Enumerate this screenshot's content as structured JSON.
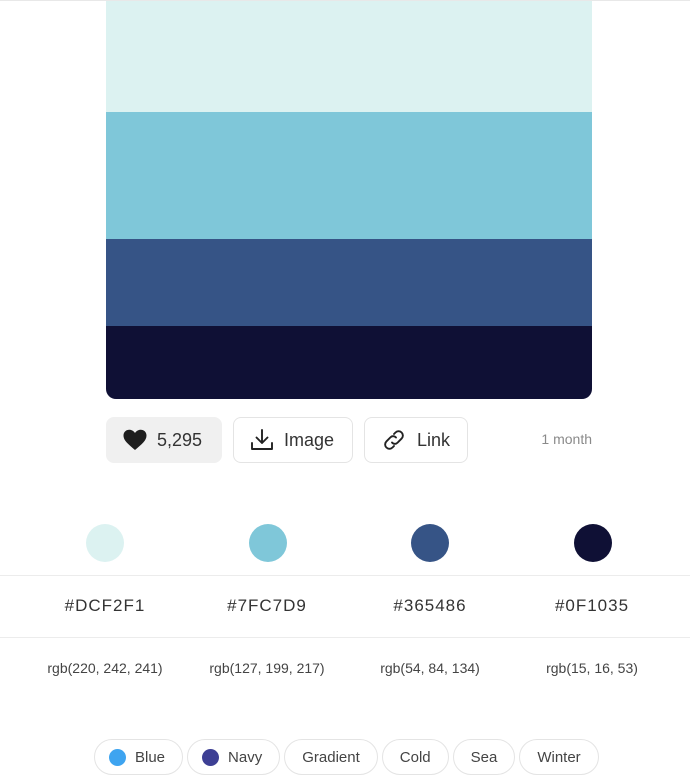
{
  "palette": {
    "colors": [
      {
        "hex": "#DCF2F1",
        "rgb": "rgb(220, 242, 241)"
      },
      {
        "hex": "#7FC7D9",
        "rgb": "rgb(127, 199, 217)"
      },
      {
        "hex": "#365486",
        "rgb": "rgb(54, 84, 134)"
      },
      {
        "hex": "#0F1035",
        "rgb": "rgb(15, 16, 53)"
      }
    ]
  },
  "actions": {
    "likes": "5,295",
    "image_label": "Image",
    "link_label": "Link",
    "age": "1 month"
  },
  "tags": [
    {
      "label": "Blue",
      "color": "#3ea4f0"
    },
    {
      "label": "Navy",
      "color": "#3d3f94"
    },
    {
      "label": "Gradient"
    },
    {
      "label": "Cold"
    },
    {
      "label": "Sea"
    },
    {
      "label": "Winter"
    }
  ]
}
